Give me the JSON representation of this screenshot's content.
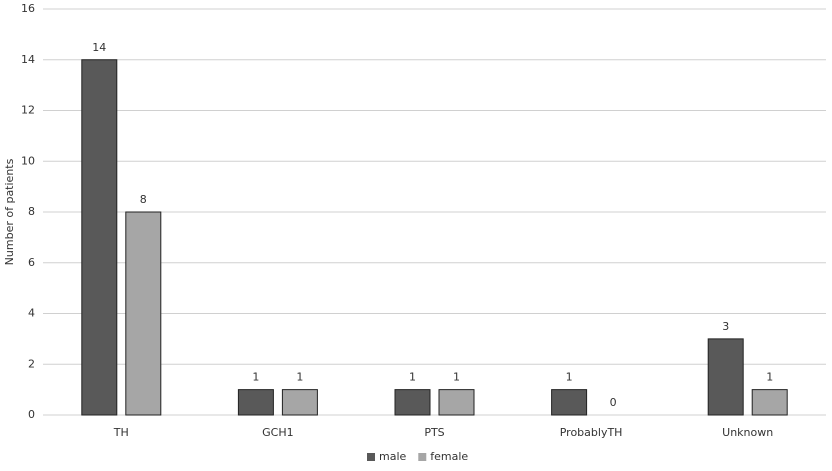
{
  "chart_data": {
    "type": "bar",
    "y_label": "Number of patients",
    "categories": [
      "TH",
      "GCH1",
      "PTS",
      "ProbablyTH",
      "Unknown"
    ],
    "series": [
      {
        "name": "male",
        "color": "#595959",
        "values": [
          14,
          1,
          1,
          1,
          3
        ]
      },
      {
        "name": "female",
        "color": "#a6a6a6",
        "values": [
          8,
          1,
          1,
          0,
          1
        ]
      }
    ],
    "ylim": [
      0,
      16
    ],
    "yticks": [
      0,
      2,
      4,
      6,
      8,
      10,
      12,
      14,
      16
    ],
    "grid": true,
    "legend": "bottom"
  }
}
